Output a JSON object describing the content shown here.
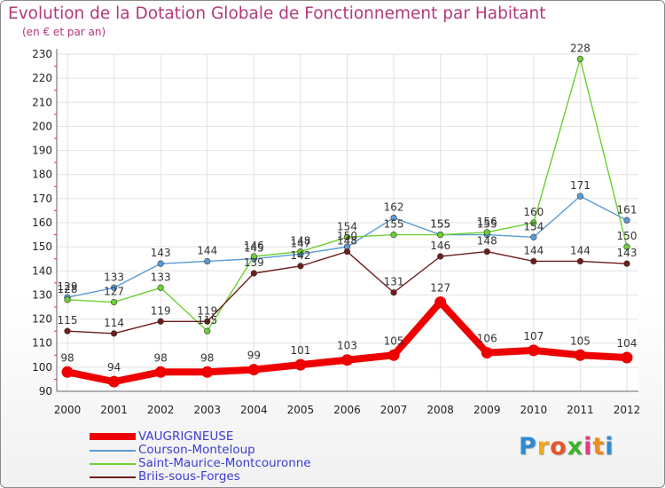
{
  "chart_data": {
    "type": "line",
    "title": "Evolution de la Dotation Globale de Fonctionnement par Habitant",
    "subtitle": "(en € et par an)",
    "xlabel": "",
    "ylabel": "",
    "x": [
      "2000",
      "2001",
      "2002",
      "2003",
      "2004",
      "2005",
      "2006",
      "2007",
      "2008",
      "2009",
      "2010",
      "2011",
      "2012"
    ],
    "yticks": [
      "230",
      "220",
      "210",
      "200",
      "190",
      "180",
      "170",
      "160",
      "150",
      "140",
      "130",
      "120",
      "110",
      "100",
      "90"
    ],
    "ylim": [
      90,
      230
    ],
    "grid": true,
    "series": [
      {
        "name": "Courson-Monteloup",
        "color": "#5b9bd5",
        "values": [
          129,
          133,
          143,
          144,
          145,
          147,
          150,
          162,
          155,
          155,
          154,
          171,
          161
        ],
        "labels": [
          "129",
          "133",
          "143",
          "144",
          "145",
          "147",
          "150",
          "162",
          "155",
          "155",
          "154",
          "171",
          "161"
        ]
      },
      {
        "name": "Saint-Maurice-Montcouronne",
        "color": "#6cd032",
        "values": [
          128,
          127,
          133,
          115,
          146,
          148,
          154,
          155,
          155,
          156,
          160,
          228,
          150
        ],
        "labels": [
          "128",
          "127",
          "133",
          "115",
          "146",
          "148",
          "154",
          "155",
          "155",
          "156",
          "160",
          "228",
          "150"
        ]
      },
      {
        "name": "Briis-sous-Forges",
        "color": "#6e1c1c",
        "values": [
          115,
          114,
          119,
          119,
          139,
          142,
          148,
          131,
          146,
          148,
          144,
          144,
          143
        ],
        "labels": [
          "115",
          "114",
          "119",
          "119",
          "139",
          "142",
          "148",
          "131",
          "146",
          "148",
          "144",
          "144",
          "143"
        ]
      },
      {
        "name": "VAUGRIGNEUSE",
        "color": "#ee0000",
        "values": [
          98,
          94,
          98,
          98,
          99,
          101,
          103,
          105,
          127,
          106,
          107,
          105,
          104
        ],
        "labels": [
          "98",
          "94",
          "98",
          "98",
          "99",
          "101",
          "103",
          "105",
          "127",
          "106",
          "107",
          "105",
          "104"
        ]
      }
    ]
  },
  "legend": {
    "items": [
      {
        "label": "VAUGRIGNEUSE",
        "color": "#ee0000"
      },
      {
        "label": "Courson-Monteloup",
        "color": "#5b9bd5"
      },
      {
        "label": "Saint-Maurice-Montcouronne",
        "color": "#6cd032"
      },
      {
        "label": "Briis-sous-Forges",
        "color": "#6e1c1c"
      }
    ]
  },
  "logo": {
    "letters": [
      "P",
      "r",
      "o",
      "x",
      "i",
      "t",
      "i"
    ],
    "colors": [
      "#2f8bd1",
      "#f0a91a",
      "#e5532c",
      "#3fb22e",
      "#e93a86",
      "#f28a1d",
      "#2f8bd1"
    ]
  }
}
